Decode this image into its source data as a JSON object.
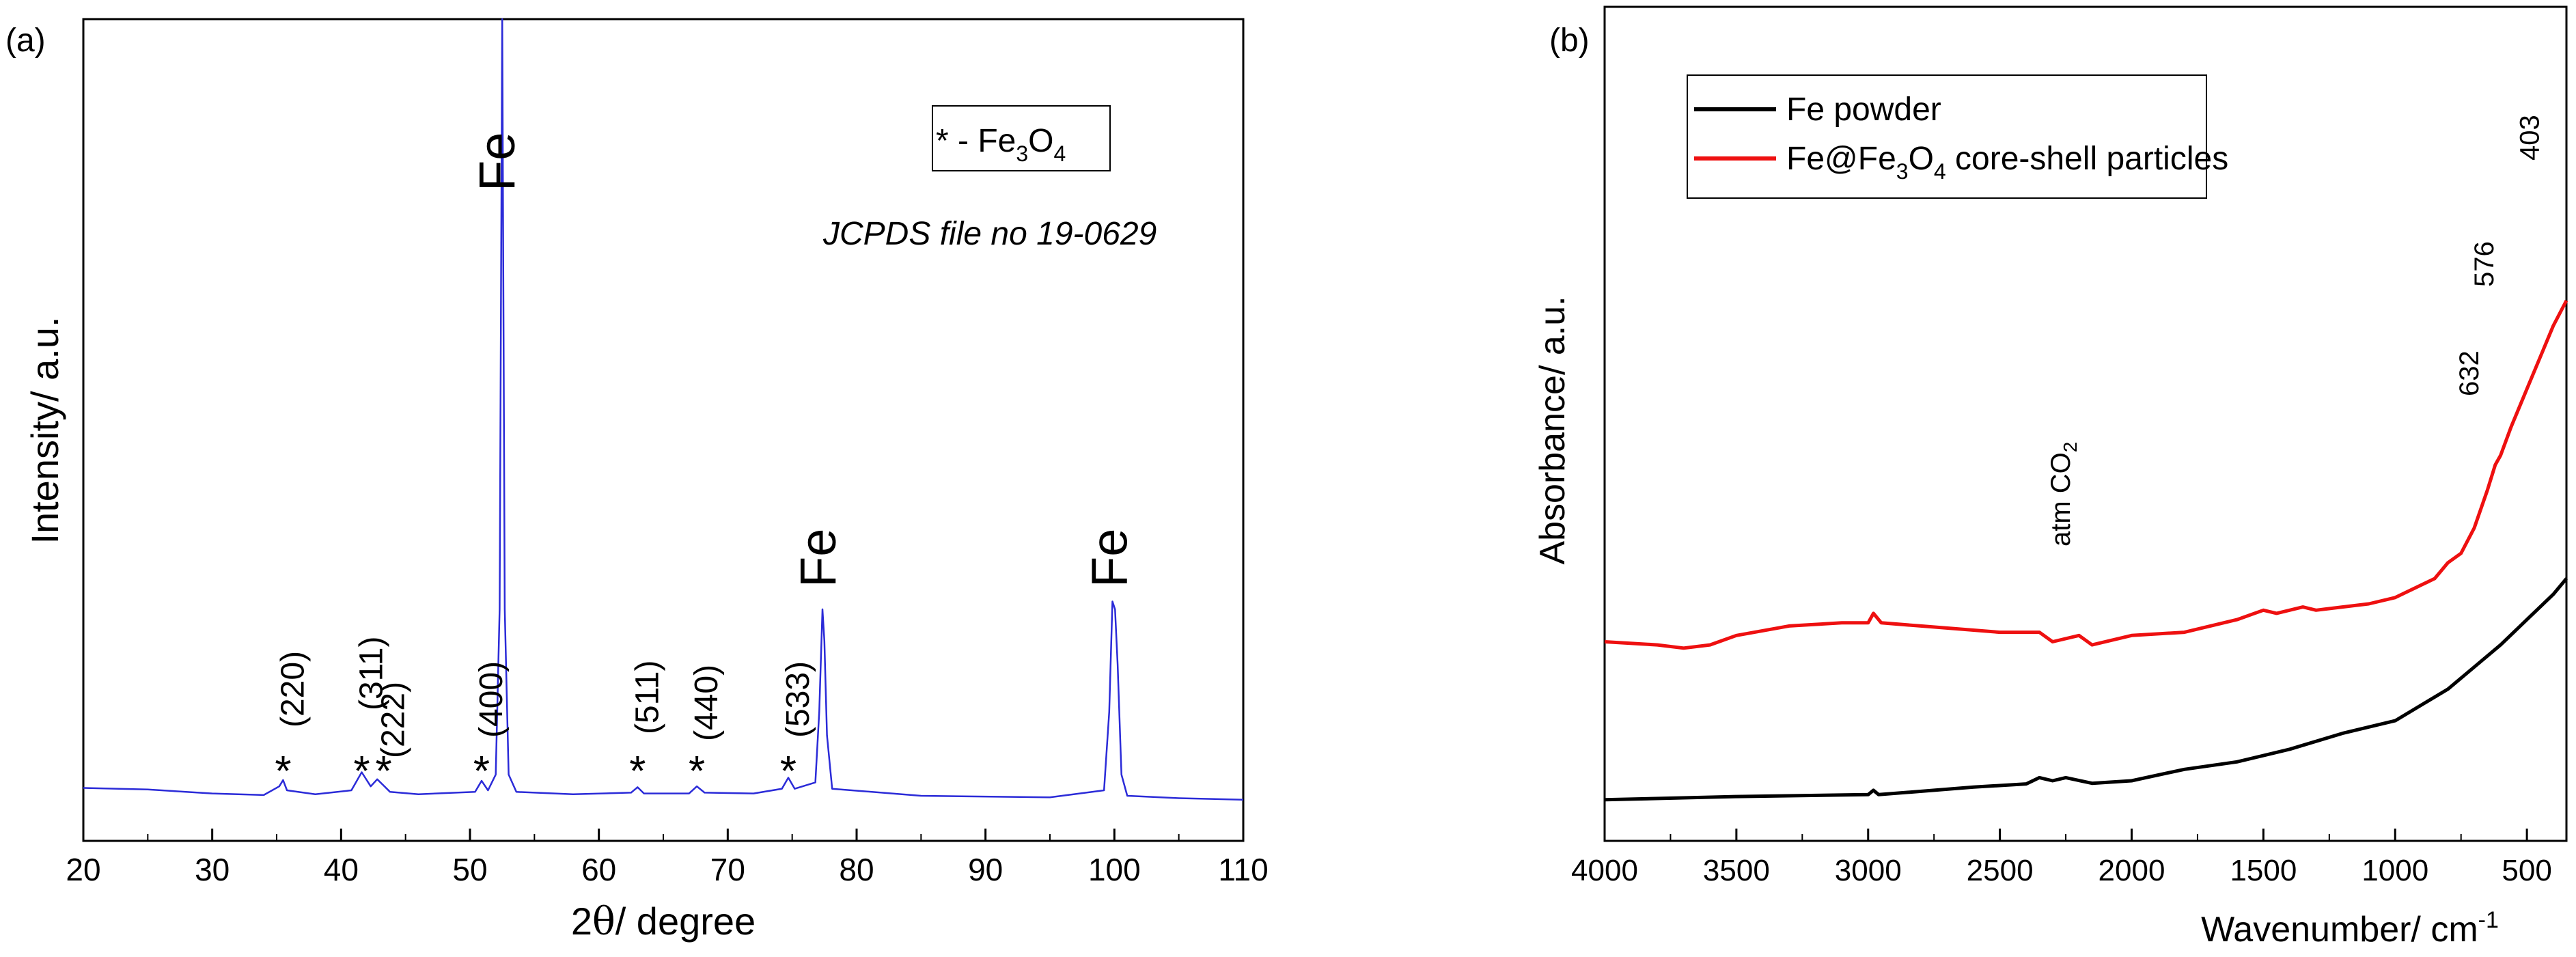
{
  "chart_data": [
    {
      "type": "line",
      "panel_label": "(a)",
      "title": "",
      "xlabel_prefix": "2",
      "xlabel_theta": "θ",
      "xlabel_suffix": "/ degree",
      "ylabel": "Intensity/ a.u.",
      "xlim": [
        20,
        110
      ],
      "ylim": [
        0,
        100
      ],
      "xticks": [
        20,
        30,
        40,
        50,
        60,
        70,
        80,
        90,
        100,
        110
      ],
      "series_color": "#2b2bd8",
      "series": [
        {
          "name": "XRD pattern",
          "x": [
            20,
            25,
            30,
            34,
            35.2,
            35.5,
            35.8,
            38,
            40.8,
            41.6,
            42.3,
            42.8,
            43.3,
            43.8,
            46,
            50.4,
            50.9,
            51.4,
            52.0,
            52.3,
            52.5,
            52.7,
            53.0,
            53.6,
            58,
            62.5,
            63.0,
            63.5,
            67,
            67.6,
            68.2,
            72,
            74.2,
            74.7,
            75.2,
            76.8,
            77.1,
            77.35,
            77.5,
            77.7,
            78.1,
            85,
            95,
            99.2,
            99.6,
            99.85,
            100.05,
            100.25,
            100.55,
            101.0,
            105,
            110
          ],
          "y": [
            2.3,
            2.1,
            1.6,
            1.4,
            2.5,
            3.3,
            2.0,
            1.5,
            2.0,
            4.3,
            2.5,
            3.4,
            2.6,
            1.8,
            1.5,
            1.8,
            3.2,
            2.0,
            4.0,
            25,
            100,
            25,
            4.0,
            1.8,
            1.5,
            1.7,
            2.4,
            1.6,
            1.6,
            2.5,
            1.7,
            1.6,
            2.2,
            3.6,
            2.2,
            3.0,
            12,
            25,
            21,
            9,
            2.2,
            1.3,
            1.1,
            2.0,
            12,
            26,
            25,
            18,
            4,
            1.3,
            1.0,
            0.8
          ]
        }
      ],
      "legend": {
        "symbol": "* - ",
        "formula_parts": [
          "Fe",
          "3",
          "O",
          "4"
        ]
      },
      "annotations": {
        "reference": "JCPDS  file no 19-0629",
        "fe_label": "Fe",
        "fe_positions": [
          52.5,
          77.4,
          100.0
        ],
        "star_symbol": "*",
        "star_positions": [
          35.5,
          41.6,
          43.3,
          50.9,
          63.0,
          67.6,
          74.7
        ],
        "hkl": [
          {
            "label": "(220)",
            "x": 35.5
          },
          {
            "label": "(311)",
            "x": 41.6
          },
          {
            "label": "(222)",
            "x": 43.3
          },
          {
            "label": "(400)",
            "x": 50.9
          },
          {
            "label": "(511)",
            "x": 63.0
          },
          {
            "label": "(440)",
            "x": 67.6
          },
          {
            "label": "(533)",
            "x": 74.7
          }
        ]
      }
    },
    {
      "type": "line",
      "panel_label": "(b)",
      "title": "",
      "xlabel": "Wavenumber/ cm",
      "xlabel_sup": "-1",
      "ylabel": "Absorbance/ a.u.",
      "xlim": [
        4000,
        350
      ],
      "ylim": [
        0,
        100
      ],
      "xticks": [
        4000,
        3500,
        3000,
        2500,
        2000,
        1500,
        1000,
        500
      ],
      "series": [
        {
          "name": "Fe powder",
          "color": "#000000",
          "x": [
            4000,
            3500,
            3000,
            2980,
            2960,
            2600,
            2400,
            2350,
            2300,
            2250,
            2150,
            2000,
            1800,
            1600,
            1400,
            1200,
            1000,
            900,
            800,
            700,
            600,
            500,
            400,
            350
          ],
          "y": [
            1.0,
            1.5,
            1.8,
            2.5,
            1.8,
            3.0,
            3.5,
            4.5,
            4.0,
            4.5,
            3.6,
            4.0,
            5.8,
            7.0,
            9.0,
            11.5,
            13.5,
            16,
            18.5,
            22,
            25.5,
            29.5,
            33.5,
            36
          ]
        },
        {
          "name": "Fe@Fe3O4 core-shell particles",
          "color": "#ee1010",
          "x": [
            4000,
            3800,
            3700,
            3600,
            3500,
            3300,
            3100,
            3000,
            2980,
            2950,
            2800,
            2500,
            2350,
            2300,
            2200,
            2150,
            2000,
            1800,
            1600,
            1500,
            1450,
            1350,
            1300,
            1200,
            1100,
            1000,
            900,
            850,
            800,
            750,
            700,
            650,
            620,
            600,
            560,
            500,
            450,
            400,
            350
          ],
          "y": [
            26,
            25.5,
            25,
            25.5,
            27,
            28.5,
            29,
            29,
            30.5,
            29,
            28.5,
            27.5,
            27.5,
            26,
            27,
            25.5,
            27,
            27.5,
            29.5,
            31,
            30.5,
            31.5,
            31,
            31.5,
            32,
            33,
            35,
            36,
            38.5,
            40,
            44,
            50,
            54,
            55.5,
            60,
            66,
            71,
            76,
            80
          ]
        }
      ],
      "legend": {
        "entries": [
          {
            "parts": [
              "Fe powder"
            ],
            "color": "#000000"
          },
          {
            "parts": [
              "Fe@Fe",
              "3",
              "O",
              "4",
              " core-shell particles"
            ],
            "color": "#ee1010"
          }
        ]
      },
      "annotations": {
        "co2_prefix": "atm CO",
        "co2_sub": "2",
        "co2_x": 2300,
        "peaks": [
          {
            "label": "632",
            "x": 632
          },
          {
            "label": "576",
            "x": 576
          },
          {
            "label": "403",
            "x": 403
          }
        ]
      }
    }
  ]
}
